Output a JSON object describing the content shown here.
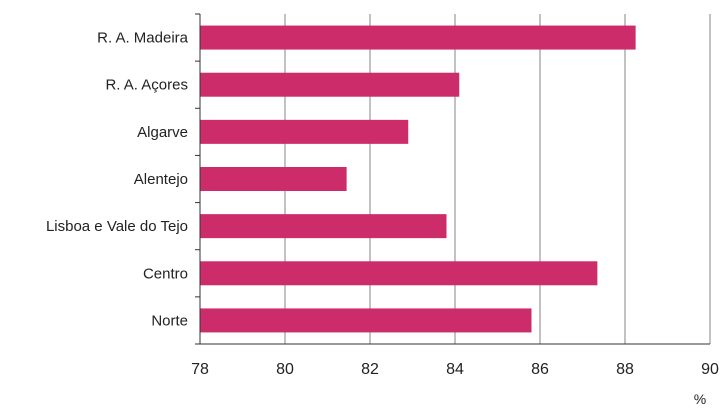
{
  "chart_data": {
    "type": "bar",
    "orientation": "horizontal",
    "categories": [
      "R. A. Madeira",
      "R. A. Açores",
      "Algarve",
      "Alentejo",
      "Lisboa e Vale do Tejo",
      "Centro",
      "Norte"
    ],
    "values": [
      88.25,
      84.1,
      82.9,
      81.45,
      83.8,
      87.35,
      85.8
    ],
    "xlim": [
      78,
      90
    ],
    "xticks": [
      "78",
      "80",
      "82",
      "84",
      "86",
      "88",
      "90"
    ],
    "unit": "%",
    "grid": "vertical",
    "bar_color": "#cc2c6a",
    "grid_color": "#9a9a9a"
  }
}
